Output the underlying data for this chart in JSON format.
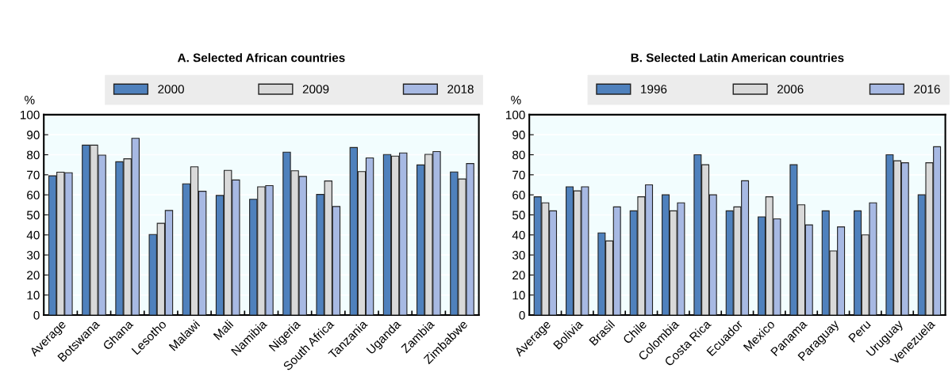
{
  "chart_data": [
    {
      "type": "bar",
      "title": "A. Selected African countries",
      "ylabel": "%",
      "categories": [
        "Average",
        "Botswana",
        "Ghana",
        "Lesotho",
        "Malawi",
        "Mali",
        "Namibia",
        "Nigeria",
        "South Africa",
        "Tanzania",
        "Uganda",
        "Zambia",
        "Zimbabwe"
      ],
      "series": [
        {
          "name": "2000",
          "color": "#4f81bd",
          "values": [
            69.5,
            84.8,
            76.5,
            40.2,
            65.5,
            59.7,
            57.8,
            81.3,
            60.2,
            83.6,
            80.1,
            74.9,
            71.4
          ]
        },
        {
          "name": "2009",
          "color": "#d9d9d9",
          "values": [
            71.3,
            84.8,
            78,
            45.8,
            74,
            72.2,
            64,
            72,
            66.9,
            71.6,
            79.3,
            80.2,
            67.9
          ]
        },
        {
          "name": "2018",
          "color": "#a7b9e3",
          "values": [
            71,
            79.8,
            88.2,
            52.2,
            61.8,
            67.4,
            64.6,
            69.2,
            54.2,
            78.4,
            80.9,
            81.6,
            75.6
          ]
        }
      ],
      "ylim": [
        0,
        100
      ],
      "yticks": [
        0,
        10,
        20,
        30,
        40,
        50,
        60,
        70,
        80,
        90,
        100
      ],
      "grid": "y",
      "legend": "top"
    },
    {
      "type": "bar",
      "title": "B. Selected Latin American countries",
      "ylabel": "%",
      "categories": [
        "Average",
        "Bolivia",
        "Brasil",
        "Chile",
        "Colombia",
        "Costa Rica",
        "Ecuador",
        "Mexico",
        "Panama",
        "Paraguay",
        "Peru",
        "Uruguay",
        "Venezuela"
      ],
      "series": [
        {
          "name": "1996",
          "color": "#4f81bd",
          "values": [
            59,
            64,
            41,
            52,
            60,
            80,
            52,
            49,
            75,
            52,
            52,
            80,
            60
          ]
        },
        {
          "name": "2006",
          "color": "#d9d9d9",
          "values": [
            56,
            62,
            37,
            59,
            52,
            75,
            54,
            59,
            55,
            32,
            40,
            77,
            76
          ]
        },
        {
          "name": "2016",
          "color": "#a7b9e3",
          "values": [
            52,
            64,
            54,
            65,
            56,
            60,
            67,
            48,
            45,
            44,
            56,
            76,
            84
          ]
        }
      ],
      "ylim": [
        0,
        100
      ],
      "yticks": [
        0,
        10,
        20,
        30,
        40,
        50,
        60,
        70,
        80,
        90,
        100
      ],
      "grid": "y",
      "legend": "top"
    }
  ]
}
